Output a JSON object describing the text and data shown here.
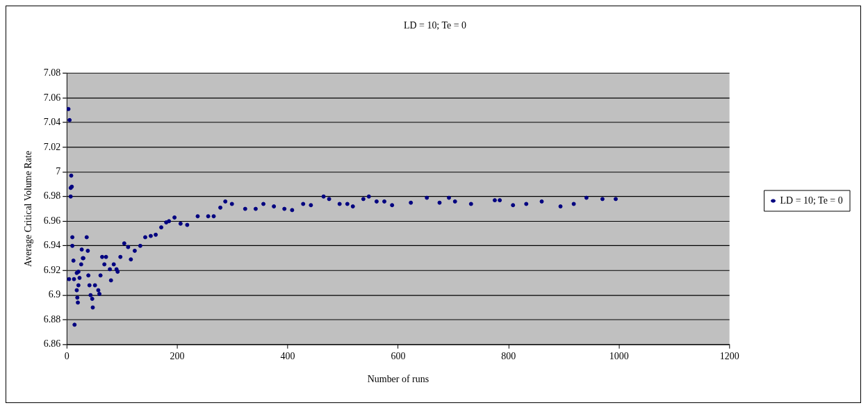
{
  "chart_data": {
    "type": "scatter",
    "title": "LD = 10; Te = 0",
    "xlabel": "Number of runs",
    "ylabel": "Average Critical Volume Rate",
    "xlim": [
      0,
      1200
    ],
    "xticks": [
      0,
      200,
      400,
      600,
      800,
      1000,
      1200
    ],
    "ylim": [
      6.86,
      7.08
    ],
    "yticks": [
      6.86,
      6.88,
      6.9,
      6.92,
      6.94,
      6.96,
      6.98,
      7,
      7.02,
      7.04,
      7.06,
      7.08
    ],
    "grid": "y",
    "legend": "right",
    "marker": "circle",
    "series": [
      {
        "name": "LD = 10; Te = 0",
        "color": "#000080",
        "x": [
          3,
          4,
          5,
          7,
          7,
          8,
          9,
          10,
          10,
          12,
          13,
          14,
          18,
          18,
          19,
          20,
          21,
          21,
          23,
          26,
          27,
          29,
          30,
          36,
          38,
          39,
          41,
          43,
          46,
          47,
          51,
          57,
          59,
          61,
          64,
          68,
          71,
          78,
          80,
          85,
          90,
          92,
          97,
          104,
          111,
          116,
          123,
          133,
          142,
          152,
          161,
          171,
          180,
          185,
          195,
          206,
          218,
          237,
          256,
          266,
          278,
          287,
          299,
          323,
          342,
          356,
          375,
          394,
          408,
          428,
          442,
          465,
          475,
          494,
          508,
          518,
          537,
          547,
          561,
          575,
          589,
          623,
          652,
          675,
          692,
          703,
          732,
          775,
          784,
          808,
          832,
          860,
          894,
          918,
          941,
          970,
          994
        ],
        "values": [
          7.051,
          6.913,
          7.042,
          6.987,
          6.98,
          6.997,
          6.988,
          6.947,
          6.94,
          6.928,
          6.913,
          6.876,
          6.918,
          6.904,
          6.898,
          6.894,
          6.919,
          6.908,
          6.914,
          6.925,
          6.937,
          6.93,
          6.93,
          6.947,
          6.936,
          6.916,
          6.908,
          6.9,
          6.897,
          6.89,
          6.908,
          6.904,
          6.901,
          6.916,
          6.931,
          6.925,
          6.931,
          6.921,
          6.912,
          6.925,
          6.921,
          6.919,
          6.931,
          6.942,
          6.939,
          6.929,
          6.936,
          6.94,
          6.947,
          6.948,
          6.949,
          6.955,
          6.959,
          6.96,
          6.963,
          6.958,
          6.957,
          6.964,
          6.964,
          6.964,
          6.971,
          6.976,
          6.974,
          6.97,
          6.97,
          6.974,
          6.972,
          6.97,
          6.969,
          6.974,
          6.973,
          6.98,
          6.978,
          6.974,
          6.974,
          6.972,
          6.978,
          6.98,
          6.976,
          6.976,
          6.973,
          6.975,
          6.979,
          6.975,
          6.979,
          6.976,
          6.974,
          6.977,
          6.977,
          6.973,
          6.974,
          6.976,
          6.972,
          6.974,
          6.979,
          6.978,
          6.978
        ]
      }
    ]
  }
}
